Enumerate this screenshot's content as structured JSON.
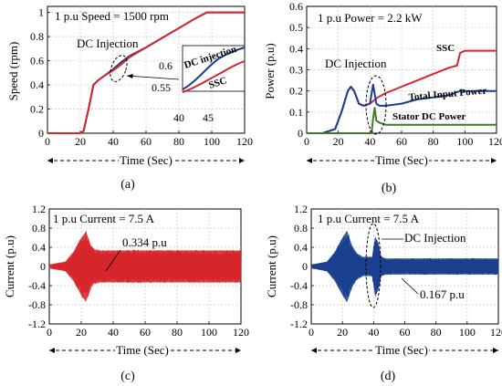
{
  "chart_data": [
    {
      "type": "line",
      "panel_label": "(a)",
      "xlabel": "Time (Sec)",
      "ylabel": "Speed (rpm)",
      "xlim": [
        0,
        120
      ],
      "ylim": [
        0,
        1.05
      ],
      "xticks": [
        "0",
        "20",
        "40",
        "60",
        "80",
        "100",
        "120"
      ],
      "yticks": [
        "0",
        "0.2",
        "0.4",
        "0.6",
        "0.8",
        "1"
      ],
      "annotations": {
        "base": "1 p.u Speed = 1500 rpm",
        "injection": "DC Injection",
        "inset_series1": "DC injection",
        "inset_series2": "SSC",
        "inset_y_high": "0.6",
        "inset_y_low": "0.55",
        "inset_x_left": "40",
        "inset_x_right": "45"
      },
      "series": [
        {
          "color": "#1a3f8f",
          "x": [
            0,
            20,
            22,
            25,
            28,
            31,
            35,
            40,
            45,
            50,
            60,
            70,
            80,
            90,
            97,
            100,
            110,
            120
          ],
          "y": [
            0,
            0,
            0.02,
            0.2,
            0.4,
            0.44,
            0.48,
            0.53,
            0.59,
            0.64,
            0.71,
            0.79,
            0.87,
            0.95,
            1.0,
            1.0,
            1.0,
            1.0
          ]
        },
        {
          "color": "#d6262b",
          "x": [
            0,
            20,
            22,
            25,
            28,
            31,
            35,
            40,
            45,
            50,
            60,
            70,
            80,
            90,
            97,
            100,
            110,
            120
          ],
          "y": [
            0,
            0,
            0.02,
            0.2,
            0.4,
            0.44,
            0.48,
            0.52,
            0.57,
            0.63,
            0.71,
            0.79,
            0.87,
            0.95,
            1.0,
            1.0,
            1.0,
            1.0
          ]
        }
      ]
    },
    {
      "type": "line",
      "panel_label": "(b)",
      "xlabel": "Time (Sec)",
      "ylabel": "Power (p.u)",
      "xlim": [
        0,
        120
      ],
      "ylim": [
        0,
        0.6
      ],
      "xticks": [
        "0",
        "20",
        "40",
        "60",
        "80",
        "100",
        "120"
      ],
      "yticks": [
        "0",
        "0.1",
        "0.2",
        "0.3",
        "0.4",
        "0.5",
        "0.6"
      ],
      "annotations": {
        "base": "1 p.u Power = 2.2 kW",
        "injection": "DC Injection"
      },
      "series": [
        {
          "name": "SSC",
          "color": "#d6262b",
          "x": [
            0,
            10,
            18,
            22,
            26,
            28,
            30,
            33,
            36,
            40,
            45,
            50,
            60,
            70,
            80,
            90,
            95,
            97,
            100,
            110,
            120
          ],
          "y": [
            0,
            0,
            0.02,
            0.1,
            0.2,
            0.22,
            0.2,
            0.14,
            0.13,
            0.14,
            0.17,
            0.19,
            0.22,
            0.25,
            0.28,
            0.31,
            0.32,
            0.38,
            0.39,
            0.39,
            0.39
          ]
        },
        {
          "name": "Total Input Power",
          "color": "#1a3f8f",
          "x": [
            0,
            10,
            18,
            22,
            26,
            28,
            30,
            33,
            36,
            40,
            42,
            44,
            46,
            50,
            60,
            70,
            80,
            90,
            97,
            100,
            110,
            120
          ],
          "y": [
            0,
            0,
            0.02,
            0.1,
            0.2,
            0.22,
            0.2,
            0.14,
            0.13,
            0.14,
            0.23,
            0.14,
            0.13,
            0.13,
            0.14,
            0.16,
            0.17,
            0.18,
            0.2,
            0.2,
            0.2,
            0.2
          ]
        },
        {
          "name": "Stator DC Power",
          "color": "#3d7a2a",
          "x": [
            0,
            41,
            42,
            43,
            44,
            46,
            50,
            60,
            80,
            100,
            120
          ],
          "y": [
            0,
            0,
            0.07,
            0.12,
            0.06,
            0.05,
            0.04,
            0.04,
            0.04,
            0.04,
            0.04
          ]
        }
      ]
    },
    {
      "type": "line",
      "panel_label": "(c)",
      "xlabel": "Time (Sec)",
      "ylabel": "Current (p.u)",
      "xlim": [
        0,
        120
      ],
      "ylim": [
        -1.2,
        1.2
      ],
      "xticks": [
        "0",
        "20",
        "40",
        "60",
        "80",
        "100",
        "120"
      ],
      "yticks": [
        "-1.2",
        "-0.8",
        "-0.4",
        "0",
        "0.4",
        "0.8",
        "1.2"
      ],
      "annotations": {
        "base": "1 p.u Current = 7.5 A",
        "level": "0.334 p.u"
      },
      "series": [
        {
          "color": "#d6262b",
          "envelope_x": [
            0,
            10,
            15,
            20,
            23,
            26,
            28,
            32,
            40,
            60,
            80,
            100,
            120
          ],
          "envelope_y": [
            0.04,
            0.1,
            0.3,
            0.6,
            0.73,
            0.45,
            0.36,
            0.33,
            0.334,
            0.334,
            0.334,
            0.334,
            0.334
          ]
        }
      ]
    },
    {
      "type": "line",
      "panel_label": "(d)",
      "xlabel": "Time (Sec)",
      "ylabel": "Current (p.u)",
      "xlim": [
        0,
        120
      ],
      "ylim": [
        -1.2,
        1.2
      ],
      "xticks": [
        "0",
        "20",
        "40",
        "60",
        "80",
        "100",
        "120"
      ],
      "yticks": [
        "-1.2",
        "-0.8",
        "-0.4",
        "0",
        "0.4",
        "0.8",
        "1.2"
      ],
      "annotations": {
        "base": "1 p.u Current = 7.5 A",
        "injection": "DC Injection",
        "level": "0.167 p.u"
      },
      "series": [
        {
          "color": "#1a3f8f",
          "envelope_x": [
            0,
            10,
            15,
            20,
            23,
            26,
            29,
            33,
            39,
            41,
            43,
            45,
            48,
            60,
            80,
            100,
            120
          ],
          "envelope_y": [
            0.04,
            0.1,
            0.3,
            0.6,
            0.75,
            0.45,
            0.28,
            0.2,
            0.2,
            0.62,
            0.5,
            0.2,
            0.167,
            0.167,
            0.167,
            0.167,
            0.167
          ]
        }
      ]
    }
  ]
}
